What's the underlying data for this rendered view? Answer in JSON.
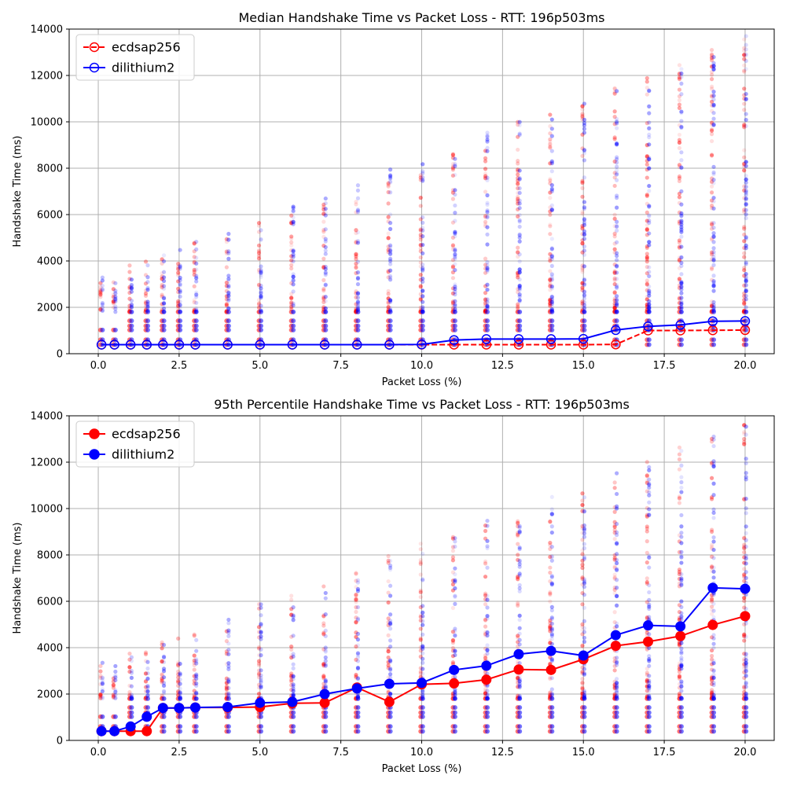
{
  "chart_data": [
    {
      "type": "line",
      "title": "Median Handshake Time vs Packet Loss - RTT: 196p503ms",
      "xlabel": "Packet Loss (%)",
      "ylabel": "Handshake Time (ms)",
      "xlim": [
        -0.9,
        20.9
      ],
      "ylim": [
        0,
        14000
      ],
      "xticks": [
        "0.0",
        "2.5",
        "5.0",
        "7.5",
        "10.0",
        "12.5",
        "15.0",
        "17.5",
        "20.0"
      ],
      "yticks": [
        "0",
        "2000",
        "4000",
        "6000",
        "8000",
        "10000",
        "12000",
        "14000"
      ],
      "grid": true,
      "legend": "top-left",
      "marker_fill": "none",
      "x": [
        0.1,
        0.5,
        1,
        1.5,
        2,
        2.5,
        3,
        4,
        5,
        6,
        7,
        8,
        9,
        10,
        11,
        12,
        13,
        14,
        15,
        16,
        17,
        18,
        19,
        20
      ],
      "series": [
        {
          "name": "ecdsap256",
          "color": "#ff0000",
          "linestyle": "dashed",
          "values": [
            390,
            390,
            390,
            390,
            390,
            390,
            390,
            390,
            390,
            390,
            390,
            390,
            390,
            390,
            390,
            390,
            390,
            390,
            390,
            400,
            1000,
            1000,
            1010,
            1020
          ]
        },
        {
          "name": "dilithium2",
          "color": "#0000ff",
          "linestyle": "solid",
          "values": [
            390,
            390,
            390,
            390,
            390,
            390,
            390,
            390,
            390,
            390,
            390,
            390,
            390,
            400,
            590,
            630,
            630,
            630,
            640,
            1020,
            1180,
            1240,
            1400,
            1410
          ]
        }
      ]
    },
    {
      "type": "line",
      "title": "95th Percentile Handshake Time vs Packet Loss - RTT: 196p503ms",
      "xlabel": "Packet Loss (%)",
      "ylabel": "Handshake Time (ms)",
      "xlim": [
        -0.9,
        20.9
      ],
      "ylim": [
        0,
        14000
      ],
      "xticks": [
        "0.0",
        "2.5",
        "5.0",
        "7.5",
        "10.0",
        "12.5",
        "15.0",
        "17.5",
        "20.0"
      ],
      "yticks": [
        "0",
        "2000",
        "4000",
        "6000",
        "8000",
        "10000",
        "12000",
        "14000"
      ],
      "grid": true,
      "legend": "top-left",
      "marker_fill": "solid",
      "x": [
        0.1,
        0.5,
        1,
        1.5,
        2,
        2.5,
        3,
        4,
        5,
        6,
        7,
        8,
        9,
        10,
        11,
        12,
        13,
        14,
        15,
        16,
        17,
        18,
        19,
        20
      ],
      "series": [
        {
          "name": "ecdsap256",
          "color": "#ff0000",
          "linestyle": "solid",
          "values": [
            400,
            400,
            400,
            400,
            1400,
            1400,
            1420,
            1420,
            1440,
            1600,
            1620,
            2280,
            1660,
            2420,
            2460,
            2620,
            3060,
            3040,
            3500,
            4080,
            4260,
            4500,
            4980,
            5360
          ]
        },
        {
          "name": "dilithium2",
          "color": "#0000ff",
          "linestyle": "solid",
          "values": [
            400,
            400,
            600,
            1020,
            1400,
            1400,
            1420,
            1440,
            1620,
            1660,
            2000,
            2240,
            2440,
            2480,
            3040,
            3220,
            3720,
            3860,
            3660,
            4540,
            4960,
            4920,
            6580,
            6540
          ]
        }
      ]
    }
  ]
}
